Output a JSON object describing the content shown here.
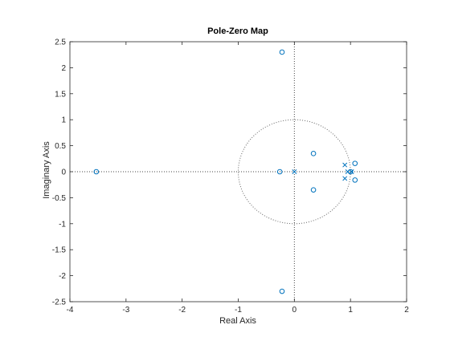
{
  "chart_data": {
    "type": "scatter",
    "title": "Pole-Zero Map",
    "xlabel": "Real Axis",
    "ylabel": "Imaginary Axis",
    "xlim": [
      -4,
      2
    ],
    "ylim": [
      -2.5,
      2.5
    ],
    "xticks": [
      -4,
      -3,
      -2,
      -1,
      0,
      1,
      2
    ],
    "yticks": [
      -2.5,
      -2,
      -1.5,
      -1,
      -0.5,
      0,
      0.5,
      1,
      1.5,
      2,
      2.5
    ],
    "xtick_labels": [
      "-4",
      "-3",
      "-2",
      "-1",
      "0",
      "1",
      "2"
    ],
    "ytick_labels": [
      "-2.5",
      "-2",
      "-1.5",
      "-1",
      "-0.5",
      "0",
      "0.5",
      "1",
      "1.5",
      "2",
      "2.5"
    ],
    "grid": false,
    "unit_circle": true,
    "color": "#0072BD",
    "series": [
      {
        "marker": "o",
        "points": [
          {
            "x": -3.53,
            "y": 0
          },
          {
            "x": -0.26,
            "y": 0
          },
          {
            "x": -0.22,
            "y": 2.3
          },
          {
            "x": -0.22,
            "y": -2.3
          },
          {
            "x": 0.34,
            "y": 0.35
          },
          {
            "x": 0.34,
            "y": -0.35
          },
          {
            "x": 1.0,
            "y": 0
          },
          {
            "x": 1.08,
            "y": 0.16
          },
          {
            "x": 1.08,
            "y": -0.16
          }
        ]
      },
      {
        "marker": "x",
        "points": [
          {
            "x": 0,
            "y": 0
          },
          {
            "x": 0.9,
            "y": 0.13
          },
          {
            "x": 0.9,
            "y": -0.13
          },
          {
            "x": 0.95,
            "y": 0
          },
          {
            "x": 1.02,
            "y": 0
          }
        ]
      }
    ]
  }
}
